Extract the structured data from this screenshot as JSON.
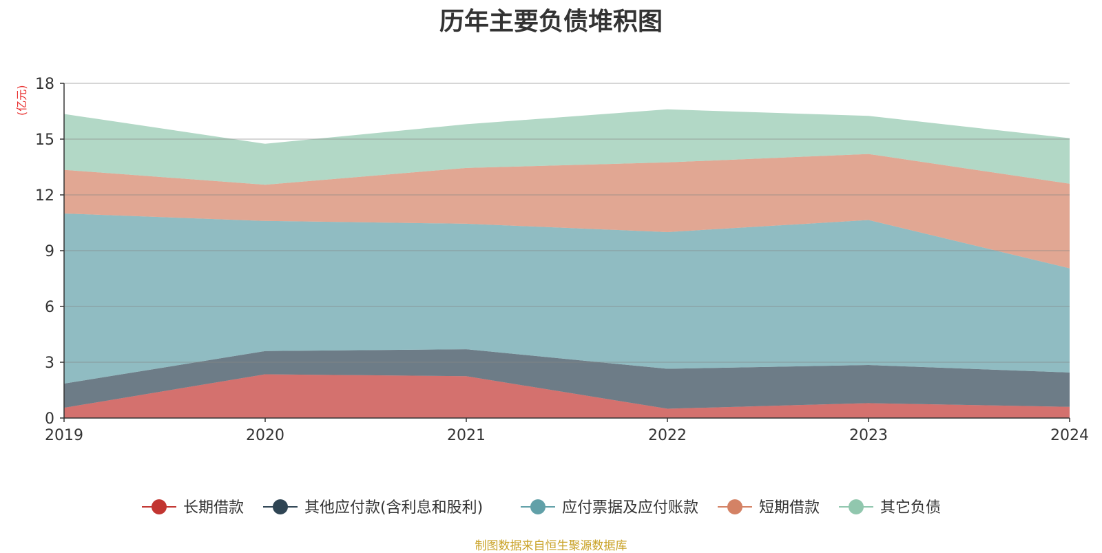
{
  "chart_data": {
    "type": "area",
    "stacked": true,
    "title": "历年主要负债堆积图",
    "ylabel": "(亿元)",
    "xlabel": "",
    "x": [
      "2019",
      "2020",
      "2021",
      "2022",
      "2023",
      "2024"
    ],
    "ylim": [
      0,
      18
    ],
    "yticks": [
      0,
      3,
      6,
      9,
      12,
      15,
      18
    ],
    "grid": true,
    "legend_position": "bottom",
    "series": [
      {
        "name": "长期借款",
        "color": "#c23531",
        "values": [
          0.55,
          2.35,
          2.25,
          0.5,
          0.8,
          0.6
        ]
      },
      {
        "name": "其他应付款(含利息和股利)",
        "color": "#2f4554",
        "values": [
          1.3,
          1.25,
          1.45,
          2.15,
          2.05,
          1.85
        ]
      },
      {
        "name": "应付票据及应付账款",
        "color": "#61a0a8",
        "values": [
          9.15,
          7.0,
          6.75,
          7.35,
          7.8,
          5.6
        ]
      },
      {
        "name": "短期借款",
        "color": "#d48265",
        "values": [
          2.35,
          1.95,
          3.0,
          3.75,
          3.55,
          4.55
        ]
      },
      {
        "name": "其它负债",
        "color": "#91c7ae",
        "values": [
          3.0,
          2.2,
          2.35,
          2.85,
          2.05,
          2.45
        ]
      }
    ]
  },
  "source_note": "制图数据来自恒生聚源数据库"
}
